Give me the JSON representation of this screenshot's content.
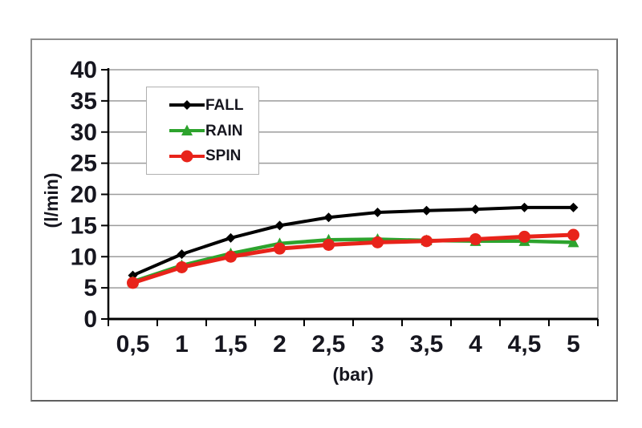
{
  "chart_data": {
    "type": "line",
    "title": "",
    "xlabel": "(bar)",
    "ylabel": "(l/min)",
    "categories": [
      0.5,
      1,
      1.5,
      2,
      2.5,
      3,
      3.5,
      4,
      4.5,
      5
    ],
    "x_tick_labels": [
      "0,5",
      "1",
      "1,5",
      "2",
      "2,5",
      "3",
      "3,5",
      "4",
      "4,5",
      "5"
    ],
    "ylim": [
      0,
      40
    ],
    "ytick_step": 5,
    "grid": "horizontal",
    "legend_position": "inside-top-left",
    "series": [
      {
        "name": "FALL",
        "marker": "diamond",
        "color": "#000000",
        "values": [
          7.0,
          10.4,
          13.0,
          15.0,
          16.3,
          17.1,
          17.4,
          17.6,
          17.9,
          17.9
        ]
      },
      {
        "name": "RAIN",
        "marker": "triangle",
        "color": "#2da32d",
        "values": [
          6.0,
          8.6,
          10.5,
          12.1,
          12.7,
          12.8,
          12.6,
          12.5,
          12.5,
          12.3
        ]
      },
      {
        "name": "SPIN",
        "marker": "circle",
        "color": "#e8231a",
        "values": [
          5.8,
          8.3,
          10.0,
          11.3,
          11.9,
          12.3,
          12.5,
          12.8,
          13.2,
          13.5
        ]
      }
    ]
  },
  "colors": {
    "grid": "#9c9c9c",
    "axis": "#000000",
    "tick_label": "#16161f",
    "plot_right_border": "#9c9c9c",
    "frame_border": "#8f8f8f",
    "legend_border": "#b0b0b0",
    "background": "#ffffff"
  }
}
